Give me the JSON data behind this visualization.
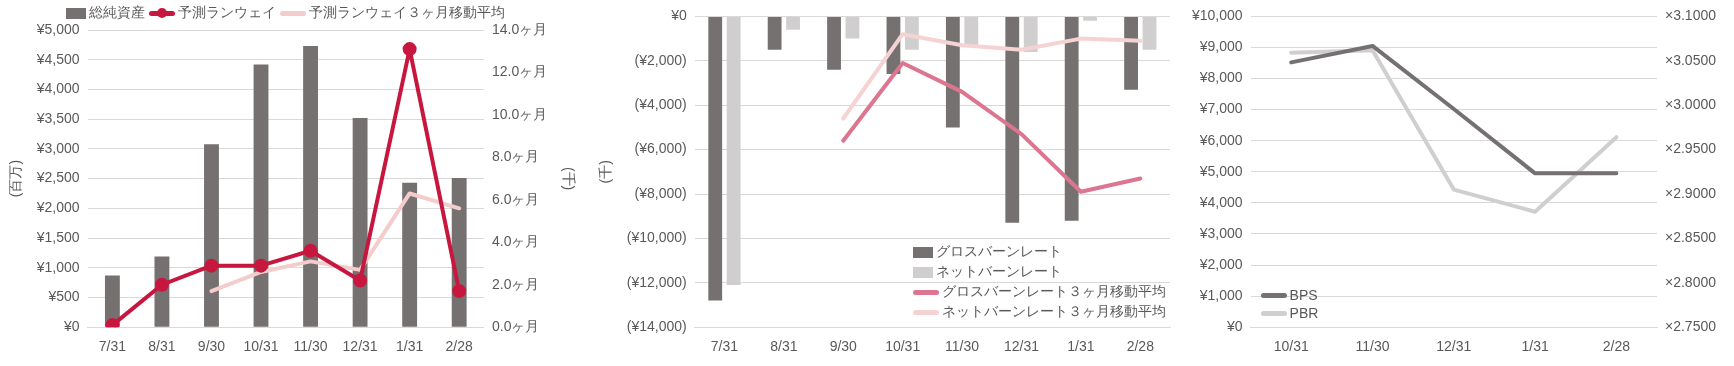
{
  "chart_data": [
    {
      "type": "bar",
      "categories": [
        "7/31",
        "8/31",
        "9/30",
        "10/31",
        "11/30",
        "12/31",
        "1/31",
        "2/28"
      ],
      "ylabel": "(百万)",
      "y2label": "(千)",
      "ylim": [
        0,
        5000
      ],
      "yticks": [
        {
          "value": 0,
          "label": "¥0"
        },
        {
          "value": 500,
          "label": "¥500"
        },
        {
          "value": 1000,
          "label": "¥1,000"
        },
        {
          "value": 1500,
          "label": "¥1,500"
        },
        {
          "value": 2000,
          "label": "¥2,000"
        },
        {
          "value": 2500,
          "label": "¥2,500"
        },
        {
          "value": 3000,
          "label": "¥3,000"
        },
        {
          "value": 3500,
          "label": "¥3,500"
        },
        {
          "value": 4000,
          "label": "¥4,000"
        },
        {
          "value": 4500,
          "label": "¥4,500"
        },
        {
          "value": 5000,
          "label": "¥5,000"
        }
      ],
      "y2lim": [
        0,
        14
      ],
      "y2ticks": [
        {
          "value": 0,
          "label": "0.0ヶ月"
        },
        {
          "value": 2,
          "label": "2.0ヶ月"
        },
        {
          "value": 4,
          "label": "4.0ヶ月"
        },
        {
          "value": 6,
          "label": "6.0ヶ月"
        },
        {
          "value": 8,
          "label": "8.0ヶ月"
        },
        {
          "value": 10,
          "label": "10.0ヶ月"
        },
        {
          "value": 12,
          "label": "12.0ヶ月"
        },
        {
          "value": 14,
          "label": "14.0ヶ月"
        }
      ],
      "grid": "y",
      "legend": "top",
      "series": [
        {
          "name": "総純資産",
          "color": "#767171",
          "values": [
            870,
            1190,
            3080,
            4420,
            4730,
            3520,
            2430,
            2510
          ]
        },
        {
          "name": "予測ランウェイ",
          "type": "line",
          "axis": "y2",
          "marker": "circle",
          "color": "#c8173f",
          "values": [
            0.1,
            2.0,
            2.9,
            2.9,
            3.6,
            2.2,
            13.1,
            1.7
          ]
        },
        {
          "name": "予測ランウェイ３ヶ月移動平均",
          "type": "line",
          "axis": "y2",
          "marker": "none",
          "color": "#f4cccc",
          "values": [
            null,
            null,
            1.7,
            2.6,
            3.1,
            2.7,
            6.3,
            5.6
          ]
        }
      ]
    },
    {
      "type": "bar",
      "categories": [
        "7/31",
        "8/31",
        "9/30",
        "10/31",
        "11/30",
        "12/31",
        "1/31",
        "2/28"
      ],
      "ylabel": "(千)",
      "ylim": [
        -14000,
        0
      ],
      "yticks": [
        {
          "value": -14000,
          "label": "(¥14,000)"
        },
        {
          "value": -12000,
          "label": "(¥12,000)"
        },
        {
          "value": -10000,
          "label": "(¥10,000)"
        },
        {
          "value": -8000,
          "label": "(¥8,000)"
        },
        {
          "value": -6000,
          "label": "(¥6,000)"
        },
        {
          "value": -4000,
          "label": "(¥4,000)"
        },
        {
          "value": -2000,
          "label": "(¥2,000)"
        },
        {
          "value": 0,
          "label": "¥0"
        }
      ],
      "grid": "y",
      "legend": "bottom right",
      "series": [
        {
          "name": "グロスバーンレート",
          "color": "#767171",
          "values": [
            -12800,
            -1500,
            -2400,
            -2600,
            -5000,
            -9300,
            -9200,
            -3300
          ]
        },
        {
          "name": "ネットバーンレート",
          "color": "#d0cece",
          "values": [
            -12100,
            -600,
            -1000,
            -1500,
            -1300,
            -1600,
            -200,
            -1500
          ]
        },
        {
          "name": "グロスバーンレート３ヶ月移動平均",
          "type": "line",
          "marker": "none",
          "color": "#dc7590",
          "values": [
            null,
            null,
            -5600,
            -2100,
            -3400,
            -5300,
            -7900,
            -7300
          ]
        },
        {
          "name": "ネットバーンレート３ヶ月移動平均",
          "type": "line",
          "marker": "none",
          "color": "#f6d3d3",
          "values": [
            null,
            null,
            -4600,
            -800,
            -1300,
            -1500,
            -1000,
            -1100
          ]
        }
      ]
    },
    {
      "type": "line",
      "categories": [
        "10/31",
        "11/30",
        "12/31",
        "1/31",
        "2/28"
      ],
      "ylim": [
        0,
        10000
      ],
      "yticks": [
        {
          "value": 0,
          "label": "¥0"
        },
        {
          "value": 1000,
          "label": "¥1,000"
        },
        {
          "value": 2000,
          "label": "¥2,000"
        },
        {
          "value": 3000,
          "label": "¥3,000"
        },
        {
          "value": 4000,
          "label": "¥4,000"
        },
        {
          "value": 5000,
          "label": "¥5,000"
        },
        {
          "value": 6000,
          "label": "¥6,000"
        },
        {
          "value": 7000,
          "label": "¥7,000"
        },
        {
          "value": 8000,
          "label": "¥8,000"
        },
        {
          "value": 9000,
          "label": "¥9,000"
        },
        {
          "value": 10000,
          "label": "¥10,000"
        }
      ],
      "y2lim": [
        2.75,
        3.1
      ],
      "y2ticks": [
        {
          "value": 2.75,
          "label": "×2.7500"
        },
        {
          "value": 2.8,
          "label": "×2.8000"
        },
        {
          "value": 2.85,
          "label": "×2.8500"
        },
        {
          "value": 2.9,
          "label": "×2.9000"
        },
        {
          "value": 2.95,
          "label": "×2.9500"
        },
        {
          "value": 3.0,
          "label": "×3.0000"
        },
        {
          "value": 3.05,
          "label": "×3.0500"
        },
        {
          "value": 3.1,
          "label": "×3.1000"
        }
      ],
      "grid": "y",
      "legend": "bottom left",
      "marker": "none",
      "series": [
        {
          "name": "BPS",
          "color": "#767171",
          "values": [
            8520,
            9050,
            7020,
            4950,
            4950
          ]
        },
        {
          "name": "PBR",
          "axis": "y2",
          "color": "#d0cece",
          "values": [
            3.059,
            3.062,
            2.905,
            2.88,
            2.964
          ]
        }
      ]
    }
  ]
}
